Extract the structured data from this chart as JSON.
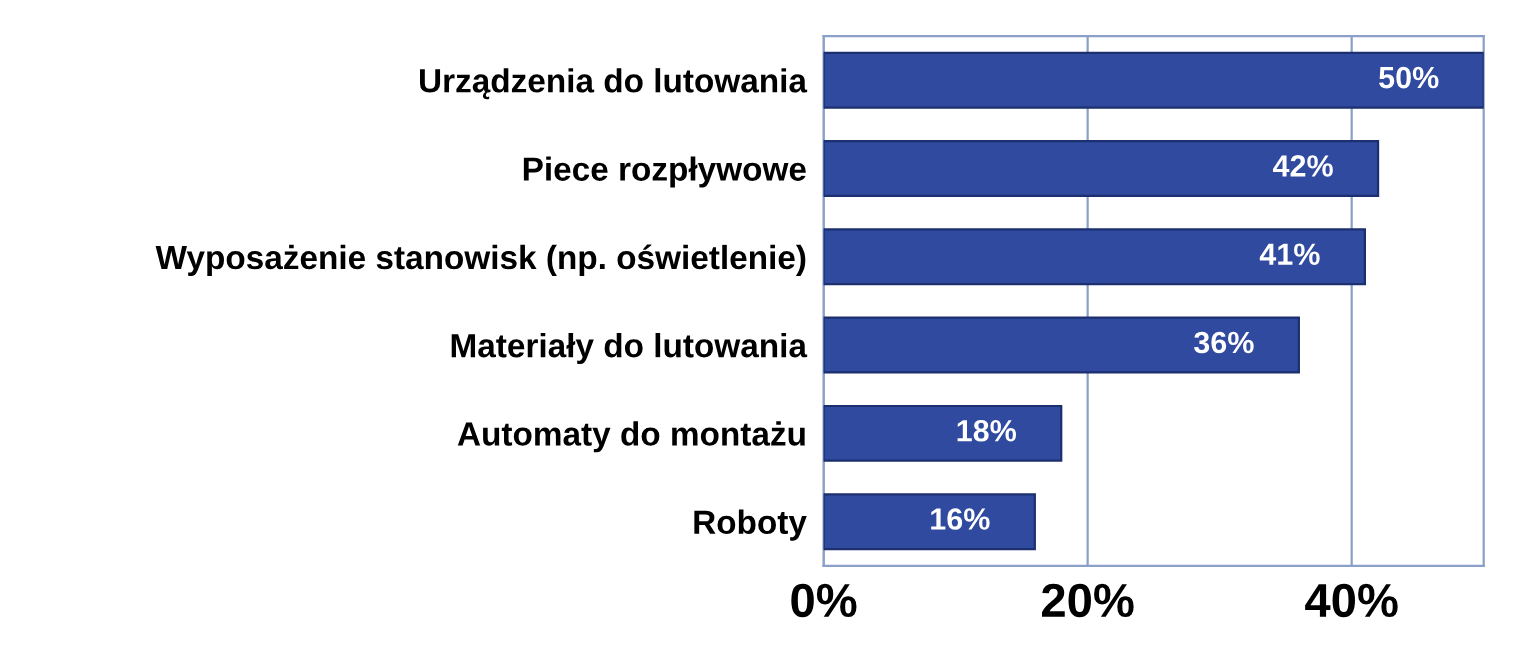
{
  "chart_data": {
    "type": "bar",
    "orientation": "horizontal",
    "categories": [
      "Urządzenia do lutowania",
      "Piece rozpływowe",
      "Wyposażenie stanowisk (np. oświetlenie)",
      "Materiały do lutowania",
      "Automaty do montażu",
      "Roboty"
    ],
    "values": [
      50,
      42,
      41,
      36,
      18,
      16
    ],
    "value_labels": [
      "50%",
      "42%",
      "41%",
      "36%",
      "18%",
      "16%"
    ],
    "color": "#2f4a9f",
    "xlim": [
      0,
      50
    ],
    "xticks": [
      {
        "value": 0,
        "label": "0%"
      },
      {
        "value": 20,
        "label": "20%"
      },
      {
        "value": 40,
        "label": "40%"
      }
    ],
    "grid": "x",
    "legend": false
  }
}
